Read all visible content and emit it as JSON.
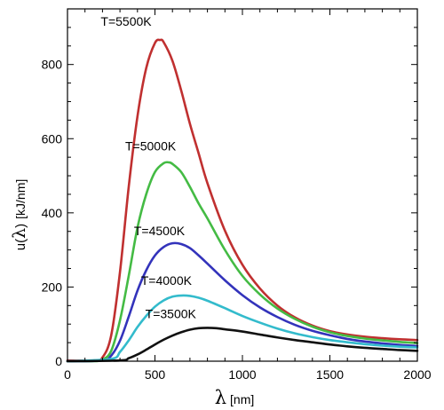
{
  "chart_data": {
    "type": "line",
    "xlabel": {
      "symbol": "λ",
      "unit": "[nm]"
    },
    "ylabel": {
      "prefix": "u(",
      "symbol": "λ",
      "suffix": ")",
      "unit": "[kJ/nm]"
    },
    "xlim": [
      0,
      2000
    ],
    "ylim": [
      0,
      950
    ],
    "xticks": [
      0,
      500,
      1000,
      1500,
      2000
    ],
    "yticks": [
      0,
      200,
      400,
      600,
      800
    ],
    "xtick_labels": [
      "0",
      "500",
      "1000",
      "1500",
      "2000"
    ],
    "ytick_labels": [
      "0",
      "200",
      "400",
      "600",
      "800"
    ],
    "grid": false,
    "legend": "none",
    "series": [
      {
        "name": "T=5500K",
        "color": "#c03030",
        "label_x": 190,
        "label_y": 905,
        "x": [
          0,
          150,
          200,
          250,
          300,
          350,
          400,
          450,
          500,
          530,
          550,
          600,
          650,
          700,
          750,
          800,
          900,
          1000,
          1100,
          1200,
          1300,
          1400,
          1500,
          1600,
          1700,
          1800,
          1900,
          2000
        ],
        "y": [
          2,
          2,
          10,
          70,
          240,
          470,
          660,
          790,
          858,
          866,
          860,
          810,
          730,
          640,
          560,
          480,
          352,
          260,
          196,
          150,
          118,
          96,
          81,
          72,
          66,
          62,
          59,
          57
        ]
      },
      {
        "name": "T=5000K",
        "color": "#44bb44",
        "label_x": 330,
        "label_y": 568,
        "x": [
          0,
          150,
          200,
          250,
          300,
          350,
          400,
          450,
          500,
          550,
          580,
          600,
          650,
          700,
          750,
          800,
          900,
          1000,
          1100,
          1200,
          1300,
          1400,
          1500,
          1600,
          1700,
          1800,
          1900,
          2000
        ],
        "y": [
          0,
          0,
          4,
          28,
          110,
          230,
          360,
          450,
          510,
          534,
          536,
          532,
          510,
          470,
          425,
          385,
          300,
          230,
          180,
          142,
          114,
          93,
          78,
          68,
          61,
          56,
          52,
          49
        ]
      },
      {
        "name": "T=4500K",
        "color": "#3333bb",
        "label_x": 380,
        "label_y": 340,
        "x": [
          0,
          200,
          250,
          300,
          350,
          400,
          450,
          500,
          550,
          600,
          650,
          700,
          750,
          800,
          900,
          1000,
          1100,
          1200,
          1300,
          1400,
          1500,
          1600,
          1700,
          1800,
          1900,
          2000
        ],
        "y": [
          0,
          2,
          15,
          55,
          120,
          190,
          245,
          285,
          308,
          318,
          316,
          305,
          285,
          263,
          218,
          178,
          145,
          119,
          98,
          82,
          70,
          60,
          53,
          48,
          44,
          41
        ]
      },
      {
        "name": "T=4000K",
        "color": "#33bbcc",
        "label_x": 420,
        "label_y": 206,
        "x": [
          0,
          250,
          300,
          350,
          400,
          450,
          500,
          550,
          600,
          650,
          700,
          750,
          800,
          900,
          1000,
          1100,
          1200,
          1300,
          1400,
          1500,
          1600,
          1700,
          1800,
          1900,
          2000
        ],
        "y": [
          0,
          6,
          25,
          56,
          92,
          122,
          147,
          164,
          174,
          177,
          176,
          171,
          163,
          143,
          122,
          104,
          88,
          75,
          65,
          57,
          51,
          46,
          42,
          39,
          37
        ]
      },
      {
        "name": "T=3500K",
        "color": "#111111",
        "label_x": 445,
        "label_y": 116,
        "x": [
          0,
          300,
          350,
          400,
          450,
          500,
          550,
          600,
          650,
          700,
          750,
          800,
          850,
          900,
          1000,
          1100,
          1200,
          1300,
          1400,
          1500,
          1600,
          1700,
          1800,
          1900,
          2000
        ],
        "y": [
          0,
          2,
          8,
          18,
          31,
          45,
          58,
          69,
          78,
          85,
          89,
          90,
          89,
          86,
          80,
          72,
          64,
          57,
          51,
          45,
          40,
          36,
          33,
          30,
          28
        ]
      }
    ]
  }
}
